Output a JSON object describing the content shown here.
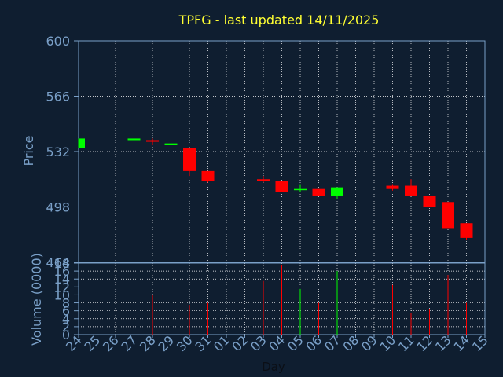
{
  "chart_data": {
    "type": "candlestick",
    "title": "TPFG - last updated 14/11/2025",
    "xlabel": "Day",
    "price_panel": {
      "ylabel": "Price",
      "ylim": [
        464,
        600
      ],
      "yticks": [
        464,
        498,
        532,
        566,
        600
      ]
    },
    "volume_panel": {
      "ylabel": "Volume (0000)",
      "ylim": [
        0,
        18
      ],
      "yticks": [
        0,
        2,
        4,
        6,
        8,
        10,
        12,
        14,
        16,
        18
      ]
    },
    "categories": [
      "24",
      "25",
      "26",
      "27",
      "28",
      "29",
      "30",
      "31",
      "01",
      "02",
      "03",
      "04",
      "05",
      "06",
      "07",
      "08",
      "09",
      "10",
      "11",
      "12",
      "13",
      "14",
      "15"
    ],
    "candles": [
      {
        "day": "24",
        "open": 534,
        "high": 540,
        "low": 534,
        "close": 540,
        "volume": 0
      },
      {
        "day": "27",
        "open": 539,
        "high": 541,
        "low": 537,
        "close": 540,
        "volume": 6.5
      },
      {
        "day": "28",
        "open": 539,
        "high": 540,
        "low": 536,
        "close": 538,
        "volume": 10
      },
      {
        "day": "29",
        "open": 536,
        "high": 538,
        "low": 532,
        "close": 537,
        "volume": 4.5
      },
      {
        "day": "30",
        "open": 534,
        "high": 534,
        "low": 517,
        "close": 520,
        "volume": 7.5
      },
      {
        "day": "31",
        "open": 520,
        "high": 520,
        "low": 513,
        "close": 514,
        "volume": 8
      },
      {
        "day": "03",
        "open": 515,
        "high": 517,
        "low": 513,
        "close": 514,
        "volume": 13.5
      },
      {
        "day": "04",
        "open": 514,
        "high": 514,
        "low": 507,
        "close": 507,
        "volume": 17.5
      },
      {
        "day": "05",
        "open": 509,
        "high": 512,
        "low": 507,
        "close": 509,
        "volume": 11.5
      },
      {
        "day": "06",
        "open": 509,
        "high": 509,
        "low": 505,
        "close": 505,
        "volume": 8
      },
      {
        "day": "07",
        "open": 505,
        "high": 510,
        "low": 503,
        "close": 510,
        "volume": 16
      },
      {
        "day": "10",
        "open": 511,
        "high": 512,
        "low": 508,
        "close": 509,
        "volume": 12.5
      },
      {
        "day": "11",
        "open": 511,
        "high": 515,
        "low": 505,
        "close": 505,
        "volume": 5.5
      },
      {
        "day": "12",
        "open": 505,
        "high": 505,
        "low": 498,
        "close": 498,
        "volume": 6.5
      },
      {
        "day": "13",
        "open": 501,
        "high": 501,
        "low": 485,
        "close": 485,
        "volume": 15
      },
      {
        "day": "14",
        "open": 488,
        "high": 488,
        "low": 478,
        "close": 479,
        "volume": 8
      }
    ],
    "grid": true,
    "colors": {
      "background": "#0f1e30",
      "axis": "#7aa0c8",
      "title": "#ffff33",
      "up": "#00ff00",
      "down": "#ff0000",
      "grid": "#ffffff"
    }
  }
}
